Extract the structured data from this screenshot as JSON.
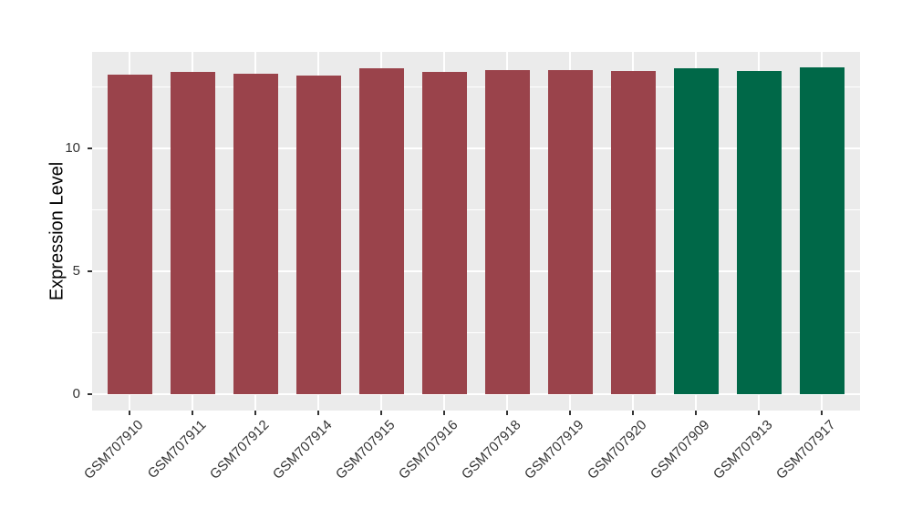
{
  "chart_data": {
    "type": "bar",
    "title": "",
    "xlabel": "",
    "ylabel": "Expression Level",
    "categories": [
      "GSM707910",
      "GSM707911",
      "GSM707912",
      "GSM707914",
      "GSM707915",
      "GSM707916",
      "GSM707918",
      "GSM707919",
      "GSM707920",
      "GSM707909",
      "GSM707913",
      "GSM707917"
    ],
    "values": [
      13.0,
      13.1,
      13.05,
      12.95,
      13.25,
      13.1,
      13.2,
      13.2,
      13.15,
      13.25,
      13.15,
      13.3
    ],
    "bar_groups": [
      "group1",
      "group1",
      "group1",
      "group1",
      "group1",
      "group1",
      "group1",
      "group1",
      "group1",
      "group2",
      "group2",
      "group2"
    ],
    "group_colors": {
      "group1": "#9A434B",
      "group2": "#006848"
    },
    "yticks": [
      0,
      5,
      10
    ],
    "ytick_labels": [
      "0",
      "5",
      "10"
    ],
    "yminor": [
      2.5,
      7.5,
      12.5
    ],
    "ylim": [
      -0.67,
      13.93
    ],
    "grid": true,
    "legend_position": "none",
    "x_label_angle_deg": 45,
    "colors": {
      "panel_background": "#EBEBEB",
      "gridline": "#FFFFFF",
      "axis_text": "#333333",
      "axis_title": "#000000",
      "page_background": "#FFFFFF"
    }
  }
}
